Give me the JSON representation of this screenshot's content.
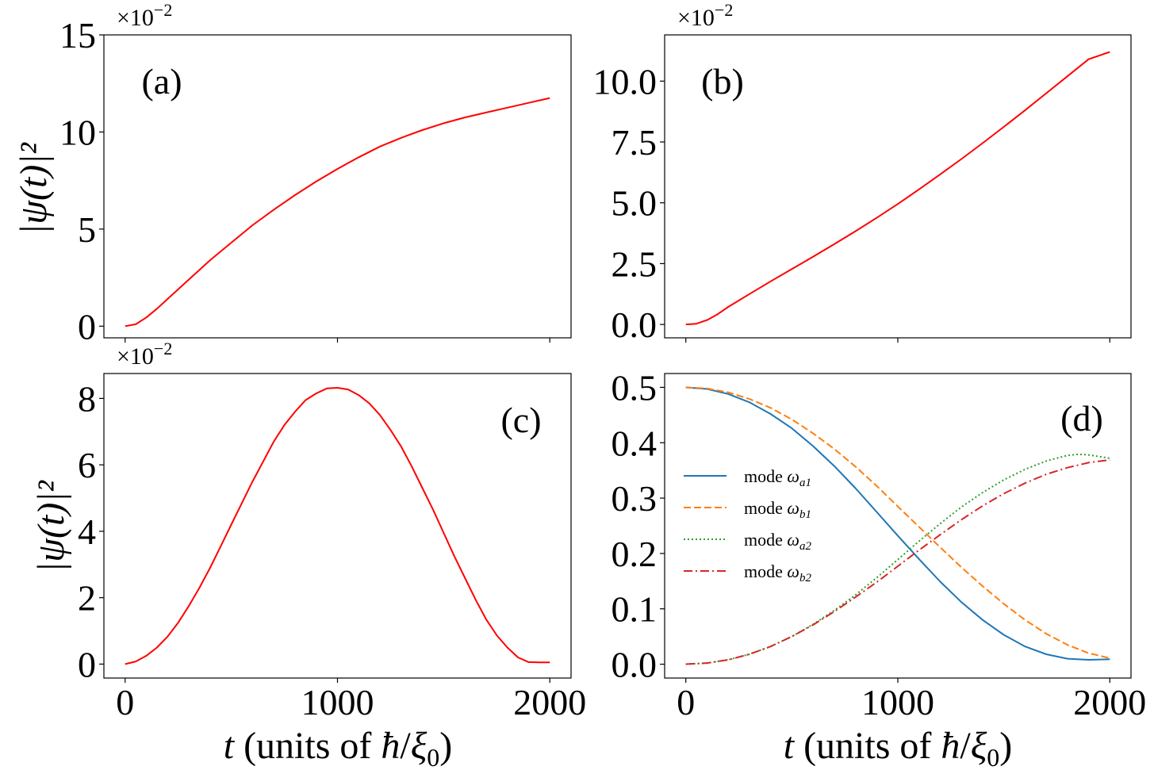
{
  "figure": {
    "ylabel": "|ψ(t)|²",
    "xlabel_parts": {
      "t": "t",
      "text": " (units of ",
      "hbar": "ħ",
      "slash": "/",
      "xi": "ξ",
      "sub": "0",
      "close": ")"
    }
  },
  "chart_data": [
    {
      "id": "a",
      "type": "line",
      "panel_label": "(a)",
      "multiplier": {
        "base": "×10",
        "exp": "−2"
      },
      "xlim": [
        -100,
        2100
      ],
      "ylim": [
        -0.6,
        15.0
      ],
      "xticks": [
        0,
        1000,
        2000
      ],
      "xtick_labels": [],
      "yticks": [
        0,
        5,
        10,
        15
      ],
      "ytick_labels": [
        "0",
        "5",
        "10",
        "15"
      ],
      "series": [
        {
          "name": "|ψ(t)|²",
          "color": "#ff0000",
          "style": "solid",
          "x": [
            0,
            50,
            100,
            150,
            200,
            300,
            400,
            500,
            600,
            700,
            800,
            900,
            1000,
            1100,
            1200,
            1300,
            1400,
            1500,
            1600,
            1700,
            1800,
            1900,
            2000
          ],
          "y": [
            0,
            0.1,
            0.45,
            0.9,
            1.4,
            2.4,
            3.4,
            4.3,
            5.2,
            6.0,
            6.75,
            7.45,
            8.1,
            8.7,
            9.25,
            9.7,
            10.1,
            10.45,
            10.75,
            11.0,
            11.25,
            11.5,
            11.75
          ]
        }
      ]
    },
    {
      "id": "b",
      "type": "line",
      "panel_label": "(b)",
      "multiplier": {
        "base": "×10",
        "exp": "−2"
      },
      "xlim": [
        -100,
        2100
      ],
      "ylim": [
        -0.55,
        11.9
      ],
      "xticks": [
        0,
        1000,
        2000
      ],
      "xtick_labels": [],
      "yticks": [
        0,
        2.5,
        5.0,
        7.5,
        10.0
      ],
      "ytick_labels": [
        "0.0",
        "2.5",
        "5.0",
        "7.5",
        "10.0"
      ],
      "series": [
        {
          "name": "|ψ(t)|²",
          "color": "#ff0000",
          "style": "solid",
          "x": [
            0,
            50,
            100,
            150,
            200,
            300,
            400,
            500,
            600,
            700,
            800,
            900,
            1000,
            1100,
            1200,
            1300,
            1400,
            1500,
            1600,
            1700,
            1800,
            1900,
            2000
          ],
          "y": [
            0,
            0.03,
            0.18,
            0.42,
            0.72,
            1.25,
            1.77,
            2.28,
            2.78,
            3.3,
            3.83,
            4.38,
            4.95,
            5.55,
            6.17,
            6.8,
            7.45,
            8.12,
            8.8,
            9.5,
            10.2,
            10.9,
            11.2
          ]
        }
      ]
    },
    {
      "id": "c",
      "type": "line",
      "panel_label": "(c)",
      "multiplier": {
        "base": "×10",
        "exp": "−2"
      },
      "xlim": [
        -100,
        2100
      ],
      "ylim": [
        -0.42,
        8.75
      ],
      "xticks": [
        0,
        1000,
        2000
      ],
      "xtick_labels": [
        "0",
        "1000",
        "2000"
      ],
      "yticks": [
        0,
        2,
        4,
        6,
        8
      ],
      "ytick_labels": [
        "0",
        "2",
        "4",
        "6",
        "8"
      ],
      "series": [
        {
          "name": "|ψ(t)|²",
          "color": "#ff0000",
          "style": "solid",
          "x": [
            0,
            50,
            100,
            150,
            200,
            250,
            300,
            350,
            400,
            450,
            500,
            550,
            600,
            650,
            700,
            750,
            800,
            850,
            900,
            950,
            1000,
            1050,
            1100,
            1150,
            1200,
            1250,
            1300,
            1350,
            1400,
            1450,
            1500,
            1550,
            1600,
            1650,
            1700,
            1750,
            1800,
            1850,
            1900,
            1950,
            2000
          ],
          "y": [
            0,
            0.08,
            0.25,
            0.5,
            0.83,
            1.25,
            1.75,
            2.3,
            2.9,
            3.55,
            4.2,
            4.85,
            5.5,
            6.1,
            6.7,
            7.2,
            7.6,
            7.95,
            8.15,
            8.3,
            8.32,
            8.27,
            8.1,
            7.85,
            7.5,
            7.05,
            6.55,
            5.95,
            5.3,
            4.65,
            3.95,
            3.25,
            2.6,
            1.95,
            1.35,
            0.87,
            0.5,
            0.2,
            0.06,
            0.05,
            0.05
          ]
        }
      ]
    },
    {
      "id": "d",
      "type": "line",
      "panel_label": "(d)",
      "xlim": [
        -100,
        2100
      ],
      "ylim": [
        -0.025,
        0.525
      ],
      "xticks": [
        0,
        1000,
        2000
      ],
      "xtick_labels": [
        "0",
        "1000",
        "2000"
      ],
      "yticks": [
        0.0,
        0.1,
        0.2,
        0.3,
        0.4,
        0.5
      ],
      "ytick_labels": [
        "0.0",
        "0.1",
        "0.2",
        "0.3",
        "0.4",
        "0.5"
      ],
      "legend": {
        "placement": "center-left"
      },
      "series": [
        {
          "name": "mode ω_a1",
          "legend_prefix": "mode ",
          "symbol": "ω",
          "sub": "a1",
          "color": "#1f77b4",
          "style": "solid",
          "x": [
            0,
            100,
            200,
            300,
            400,
            500,
            600,
            700,
            800,
            900,
            1000,
            1100,
            1200,
            1300,
            1400,
            1500,
            1600,
            1700,
            1800,
            1900,
            2000
          ],
          "y": [
            0.5,
            0.497,
            0.488,
            0.473,
            0.452,
            0.426,
            0.394,
            0.358,
            0.318,
            0.275,
            0.232,
            0.19,
            0.149,
            0.112,
            0.08,
            0.053,
            0.032,
            0.018,
            0.01,
            0.008,
            0.009
          ]
        },
        {
          "name": "mode ω_b1",
          "legend_prefix": "mode ",
          "symbol": "ω",
          "sub": "b1",
          "color": "#ff7f0e",
          "style": "dashed",
          "x": [
            0,
            100,
            200,
            300,
            400,
            500,
            600,
            700,
            800,
            900,
            1000,
            1100,
            1200,
            1300,
            1400,
            1500,
            1600,
            1700,
            1800,
            1900,
            2000
          ],
          "y": [
            0.5,
            0.498,
            0.491,
            0.479,
            0.463,
            0.442,
            0.417,
            0.389,
            0.357,
            0.322,
            0.285,
            0.248,
            0.211,
            0.175,
            0.141,
            0.109,
            0.08,
            0.055,
            0.035,
            0.02,
            0.011
          ]
        },
        {
          "name": "mode ω_a2",
          "legend_prefix": "mode ",
          "symbol": "ω",
          "sub": "a2",
          "color": "#2ca02c",
          "style": "dotted",
          "x": [
            0,
            100,
            200,
            300,
            400,
            500,
            600,
            700,
            800,
            900,
            1000,
            1100,
            1200,
            1300,
            1400,
            1500,
            1600,
            1700,
            1800,
            1850,
            1900,
            2000
          ],
          "y": [
            0,
            0.002,
            0.008,
            0.018,
            0.032,
            0.05,
            0.072,
            0.097,
            0.125,
            0.156,
            0.189,
            0.222,
            0.254,
            0.284,
            0.31,
            0.333,
            0.352,
            0.367,
            0.377,
            0.379,
            0.378,
            0.372
          ]
        },
        {
          "name": "mode ω_b2",
          "legend_prefix": "mode ",
          "symbol": "ω",
          "sub": "b2",
          "color": "#d62728",
          "style": "dashdot",
          "x": [
            0,
            100,
            200,
            300,
            400,
            500,
            600,
            700,
            800,
            900,
            1000,
            1100,
            1200,
            1300,
            1400,
            1500,
            1600,
            1700,
            1800,
            1900,
            2000
          ],
          "y": [
            0,
            0.002,
            0.008,
            0.018,
            0.032,
            0.05,
            0.071,
            0.095,
            0.121,
            0.148,
            0.177,
            0.206,
            0.234,
            0.261,
            0.286,
            0.308,
            0.327,
            0.343,
            0.355,
            0.364,
            0.369
          ]
        }
      ]
    }
  ]
}
